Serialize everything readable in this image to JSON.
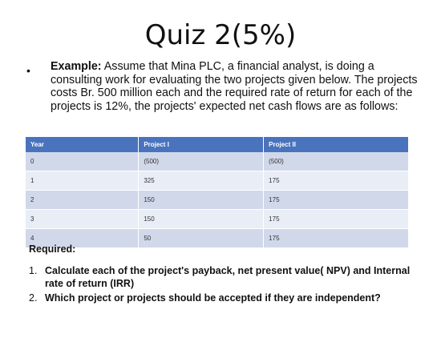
{
  "title": "Quiz 2(5%)",
  "bullet": "•",
  "example": {
    "label": "Example:",
    "text": " Assume that Mina PLC, a financial analyst, is doing a consulting work for evaluating the two projects given below. The projects costs Br. 500 million each and the required rate of return for each of the projects is 12%, the projects' expected net cash flows are as follows:"
  },
  "table": {
    "headers": [
      "Year",
      "Project I",
      "Project II"
    ],
    "rows": [
      [
        "0",
        "(500)",
        "(500)"
      ],
      [
        "1",
        "325",
        "175"
      ],
      [
        "2",
        "150",
        "175"
      ],
      [
        "3",
        "150",
        "175"
      ],
      [
        "4",
        "50",
        "175"
      ]
    ]
  },
  "required": "Required:",
  "questions": [
    {
      "num": "1.",
      "text": "Calculate each of the project's payback, net present value( NPV) and Internal rate of return (IRR)"
    },
    {
      "num": "2.",
      "text": "Which project or projects should be accepted if they are independent?"
    }
  ]
}
